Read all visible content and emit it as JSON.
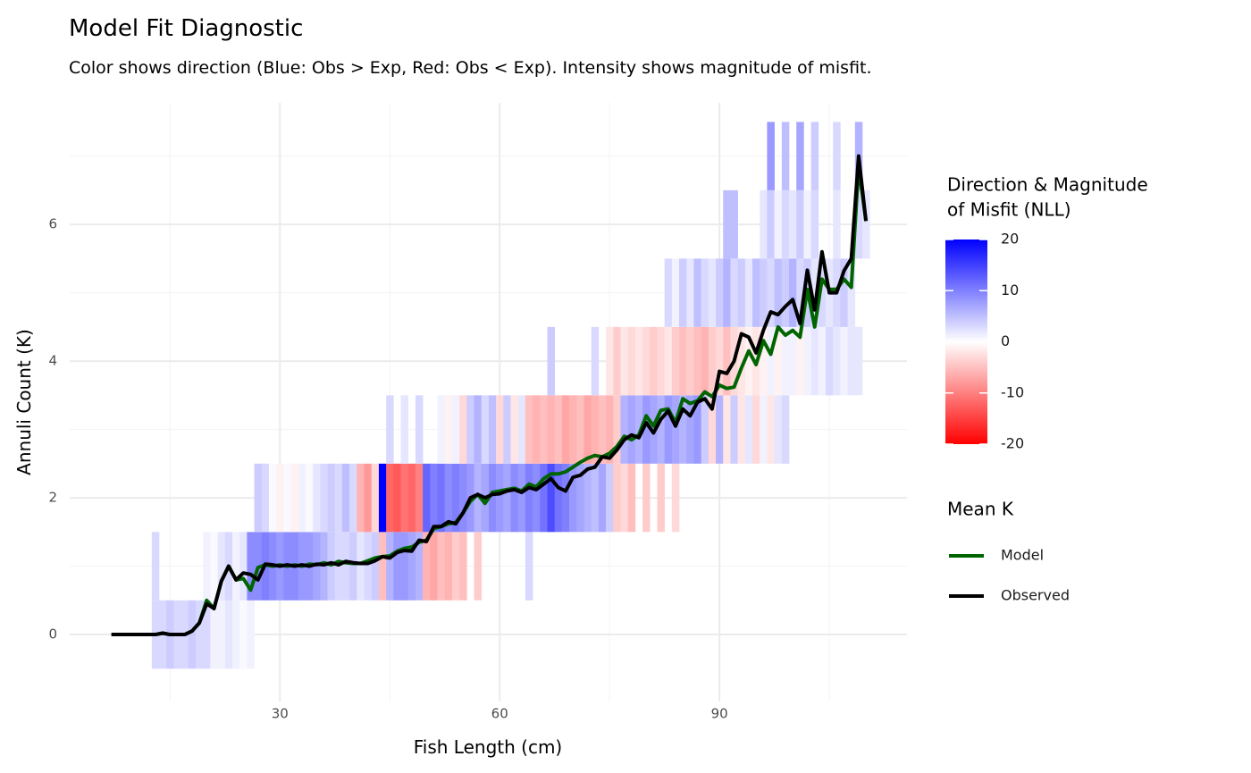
{
  "chart_data": {
    "type": "heatmap",
    "title": "Model Fit Diagnostic",
    "subtitle": "Color shows direction (Blue: Obs > Exp, Red: Obs < Exp). Intensity shows magnitude of misfit.",
    "x_label": "Fish Length (cm)",
    "y_label": "Annuli Count (K)",
    "xlim": [
      1.3,
      115.6
    ],
    "ylim": [
      -0.98,
      7.78
    ],
    "xticks": [
      30,
      60,
      90
    ],
    "yticks": [
      0,
      2,
      4,
      6
    ],
    "x_minor_ticks": [
      15,
      45,
      75,
      105
    ],
    "y_minor_ticks": [
      1,
      3,
      5,
      7
    ],
    "grid": true,
    "color_scale": {
      "title": [
        "Direction & Magnitude",
        "of Misfit (NLL)"
      ],
      "low": "#ff0000",
      "mid": "#ffffff",
      "high": "#0000ff",
      "limits": [
        -20,
        20
      ],
      "ticks": [
        20,
        10,
        0,
        -10,
        -20
      ]
    },
    "tiles": [
      {
        "y": 0,
        "x": [
          13,
          14,
          15,
          16,
          17,
          18,
          19,
          20,
          21,
          22,
          23,
          24,
          25,
          26
        ],
        "values": [
          3,
          3,
          4,
          3,
          3,
          4,
          3,
          3,
          1,
          1,
          2,
          1,
          0.5,
          1
        ]
      },
      {
        "y": 1,
        "x": [
          13,
          20,
          21,
          22,
          23,
          24,
          25,
          26,
          27,
          28,
          29,
          30,
          31,
          32,
          33,
          34,
          35,
          36,
          37,
          38,
          39,
          40,
          41,
          42,
          43,
          44,
          45,
          46,
          47,
          48,
          49,
          50,
          51,
          52,
          53,
          54,
          55,
          57,
          64
        ],
        "values": [
          3,
          1,
          0.5,
          2,
          3,
          1,
          2,
          9,
          9,
          10,
          9,
          8,
          9,
          9,
          8,
          8,
          7,
          6,
          4,
          3,
          3,
          4,
          2,
          3,
          4,
          -5,
          6,
          8,
          8,
          7,
          6,
          -6,
          -7,
          -5,
          -6,
          -4,
          -5,
          -4,
          3
        ]
      },
      {
        "y": 2,
        "x": [
          27,
          28,
          29,
          30,
          31,
          32,
          33,
          34,
          35,
          36,
          37,
          38,
          39,
          40,
          41,
          42,
          43,
          44,
          45,
          46,
          47,
          48,
          49,
          50,
          51,
          52,
          53,
          54,
          55,
          56,
          57,
          58,
          59,
          60,
          61,
          62,
          63,
          64,
          65,
          66,
          67,
          68,
          69,
          70,
          71,
          72,
          73,
          74,
          75,
          76,
          77,
          78,
          80,
          82,
          84
        ],
        "values": [
          4,
          3,
          0.5,
          -1,
          0.5,
          -1,
          1,
          0.5,
          2,
          3,
          4,
          3,
          5,
          3,
          -6,
          -8,
          -3,
          20,
          -12,
          -13,
          -11,
          -12,
          -10,
          12,
          10,
          11,
          9,
          10,
          9,
          8,
          6,
          7,
          9,
          8,
          7,
          9,
          8,
          10,
          9,
          11,
          14,
          11,
          10,
          8,
          7,
          6,
          5,
          7,
          4,
          -4,
          -3,
          -5,
          -4,
          -4,
          -3
        ]
      },
      {
        "y": 3,
        "x": [
          45,
          47,
          49,
          52,
          53,
          54,
          55,
          56,
          57,
          58,
          59,
          60,
          61,
          62,
          63,
          64,
          65,
          66,
          67,
          68,
          69,
          70,
          71,
          72,
          73,
          74,
          75,
          76,
          77,
          78,
          79,
          80,
          81,
          82,
          83,
          84,
          85,
          86,
          87,
          88,
          89,
          90,
          91,
          92,
          93,
          94,
          95,
          96,
          97,
          98,
          99
        ],
        "values": [
          3,
          2,
          3,
          1,
          -1,
          1,
          -3,
          4,
          6,
          3,
          5,
          -3,
          4,
          -2,
          2,
          -5,
          -6,
          -5,
          -6,
          -5,
          -7,
          -6,
          -5,
          -7,
          -6,
          -5,
          -6,
          -4,
          6,
          7,
          6,
          8,
          7,
          6,
          8,
          7,
          6,
          7,
          8,
          4,
          -3,
          6,
          -2,
          4,
          -2,
          2,
          -3,
          1,
          -2,
          2,
          3
        ]
      },
      {
        "y": 4,
        "x": [
          67,
          73,
          75,
          76,
          77,
          78,
          79,
          80,
          81,
          82,
          83,
          84,
          85,
          86,
          87,
          88,
          89,
          90,
          91,
          92,
          93,
          94,
          95,
          96,
          97,
          98,
          99,
          100,
          101,
          102,
          103,
          104,
          105,
          106,
          107,
          108,
          109
        ],
        "values": [
          4,
          3,
          -2,
          -4,
          -2,
          -3,
          -2,
          -3,
          -4,
          -3,
          -2,
          -4,
          -5,
          -4,
          -5,
          -6,
          -4,
          -3,
          -5,
          -3,
          -2,
          -1,
          -2,
          -1,
          1,
          -1,
          1,
          1,
          -1,
          1,
          2,
          1,
          3,
          2,
          1,
          2,
          2
        ]
      },
      {
        "y": 5,
        "x": [
          83,
          84,
          85,
          86,
          87,
          88,
          89,
          90,
          91,
          92,
          93,
          94,
          95,
          96,
          97,
          98,
          99,
          100,
          101,
          102,
          103,
          104,
          105,
          106,
          107,
          108
        ],
        "values": [
          3,
          1,
          4,
          2,
          5,
          3,
          2,
          4,
          6,
          3,
          4,
          2,
          5,
          4,
          3,
          5,
          4,
          6,
          3,
          4,
          2,
          3,
          2,
          3,
          4,
          2
        ]
      },
      {
        "y": 6,
        "x": [
          91,
          92,
          96,
          97,
          98,
          99,
          100,
          101,
          102,
          103,
          106,
          109,
          110
        ],
        "values": [
          5,
          5,
          2,
          4,
          1,
          3,
          2,
          4,
          1,
          3,
          2,
          3,
          2
        ]
      },
      {
        "y": 7,
        "x": [
          97,
          99,
          101,
          103,
          106,
          109
        ],
        "values": [
          8,
          5,
          7,
          4,
          3,
          6
        ]
      }
    ],
    "legend_title": "Mean K",
    "x": [
      7,
      8,
      9,
      10,
      11,
      12,
      13,
      14,
      15,
      16,
      17,
      18,
      19,
      20,
      21,
      22,
      23,
      24,
      25,
      26,
      27,
      28,
      29,
      30,
      31,
      32,
      33,
      34,
      35,
      36,
      37,
      38,
      39,
      40,
      41,
      42,
      43,
      44,
      45,
      46,
      47,
      48,
      49,
      50,
      51,
      52,
      53,
      54,
      55,
      56,
      57,
      58,
      59,
      60,
      61,
      62,
      63,
      64,
      65,
      66,
      67,
      68,
      69,
      70,
      71,
      72,
      73,
      74,
      75,
      76,
      77,
      78,
      79,
      80,
      81,
      82,
      83,
      84,
      85,
      86,
      87,
      88,
      89,
      90,
      91,
      92,
      93,
      94,
      95,
      96,
      97,
      98,
      99,
      100,
      101,
      102,
      103,
      104,
      105,
      106,
      107,
      108,
      109,
      110
    ],
    "series": [
      {
        "name": "Model",
        "color": "#006400",
        "values": [
          0,
          0,
          0,
          0,
          0,
          0,
          0,
          0.02,
          0,
          0,
          0,
          0.05,
          0.17,
          0.5,
          0.38,
          0.78,
          1.0,
          0.8,
          0.82,
          0.65,
          0.98,
          1.02,
          1.0,
          1.02,
          1.0,
          1.02,
          1.0,
          1.03,
          1.02,
          1.05,
          1.02,
          1.07,
          1.05,
          1.04,
          1.04,
          1.08,
          1.12,
          1.14,
          1.15,
          1.22,
          1.26,
          1.28,
          1.35,
          1.38,
          1.55,
          1.58,
          1.62,
          1.64,
          1.78,
          1.95,
          2.05,
          1.92,
          2.08,
          2.1,
          2.12,
          2.14,
          2.1,
          2.2,
          2.16,
          2.28,
          2.35,
          2.35,
          2.38,
          2.45,
          2.52,
          2.58,
          2.62,
          2.6,
          2.65,
          2.75,
          2.9,
          2.85,
          2.92,
          3.2,
          3.05,
          3.28,
          3.3,
          3.1,
          3.45,
          3.38,
          3.42,
          3.55,
          3.48,
          3.65,
          3.6,
          3.62,
          3.9,
          4.15,
          3.95,
          4.3,
          4.1,
          4.5,
          4.38,
          4.45,
          4.35,
          5.05,
          4.5,
          5.2,
          5.05,
          5.05,
          5.2,
          5.08,
          6.85,
          6.05
        ]
      },
      {
        "name": "Observed",
        "color": "#000000",
        "values": [
          0,
          0,
          0,
          0,
          0,
          0,
          0,
          0.02,
          0,
          0,
          0,
          0.05,
          0.17,
          0.45,
          0.38,
          0.78,
          1.0,
          0.8,
          0.9,
          0.88,
          0.8,
          1.03,
          1.02,
          1.0,
          1.02,
          1.0,
          1.02,
          1.0,
          1.03,
          1.02,
          1.05,
          1.02,
          1.07,
          1.05,
          1.04,
          1.04,
          1.08,
          1.14,
          1.12,
          1.2,
          1.23,
          1.22,
          1.38,
          1.36,
          1.58,
          1.58,
          1.65,
          1.62,
          1.78,
          2.0,
          2.05,
          2.0,
          2.05,
          2.06,
          2.1,
          2.12,
          2.08,
          2.15,
          2.12,
          2.2,
          2.28,
          2.15,
          2.1,
          2.3,
          2.33,
          2.42,
          2.45,
          2.6,
          2.58,
          2.7,
          2.85,
          2.92,
          2.88,
          3.1,
          2.95,
          3.15,
          3.27,
          3.05,
          3.3,
          3.2,
          3.4,
          3.45,
          3.3,
          3.85,
          3.82,
          4.0,
          4.4,
          4.35,
          4.12,
          4.45,
          4.72,
          4.68,
          4.8,
          4.9,
          4.55,
          5.33,
          4.75,
          5.6,
          5.0,
          5.0,
          5.32,
          5.5,
          7.0,
          6.05
        ]
      }
    ]
  }
}
